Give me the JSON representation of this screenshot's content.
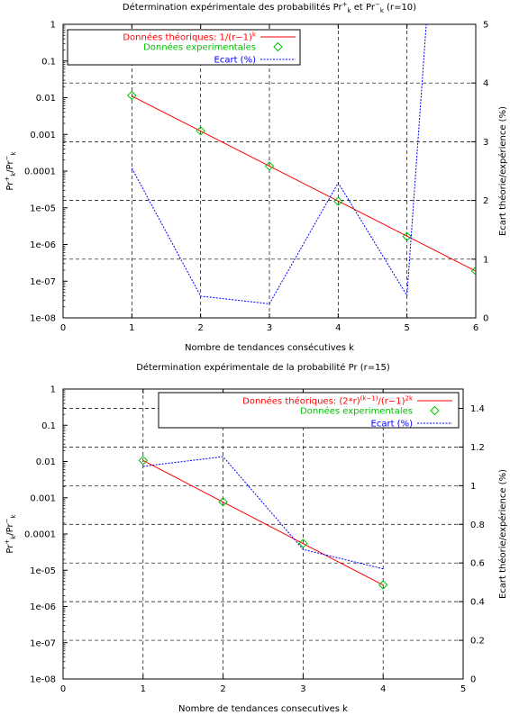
{
  "chart_data": [
    {
      "type": "line",
      "title": "Détermination expérimentale des probabilités Pr",
      "title_sup1": "+",
      "title_sub1": "k",
      "title_mid": " et Pr",
      "title_sup2": "−",
      "title_sub2": "k",
      "title_tail": " (r=10)",
      "xlabel": "Nombre de tendances consécutives k",
      "ylabel_pr": "Pr",
      "ylabel_sup1": "+",
      "ylabel_sub1": "k",
      "ylabel_slash": "/Pr",
      "ylabel_sup2": "−",
      "ylabel_sub2": "k",
      "y2label": "Ecart théorie/expérience (%)",
      "xlim": [
        0,
        6
      ],
      "ylim": [
        1e-08,
        1
      ],
      "y2lim": [
        0,
        5
      ],
      "x_ticks": [
        "0",
        "1",
        "2",
        "3",
        "4",
        "5",
        "6"
      ],
      "y_ticks": [
        "1",
        "0.1",
        "0.01",
        "0.001",
        "0.0001",
        "1e-05",
        "1e-06",
        "1e-07",
        "1e-08"
      ],
      "y2_ticks": [
        "0",
        "1",
        "2",
        "3",
        "4",
        "5"
      ],
      "legend": "top-left",
      "grid": true,
      "series": [
        {
          "name": "Données théoriques: 1/(r−1)",
          "name_sup": "k",
          "color": "#ff0000",
          "style": "line",
          "x": [
            1,
            2,
            3,
            4,
            5,
            6
          ],
          "y": [
            0.0111,
            0.00123,
            0.000137,
            1.52e-05,
            1.69e-06,
            1.88e-07
          ]
        },
        {
          "name": "Données experimentales",
          "color": "#00c000",
          "style": "diamond",
          "x": [
            1,
            2,
            3,
            4,
            5,
            6
          ],
          "y": [
            0.0115,
            0.00125,
            0.000137,
            1.5e-05,
            1.65e-06,
            1.9e-07
          ]
        },
        {
          "name": "Ecart (%)",
          "color": "#0000ff",
          "style": "dashed",
          "axis": "y2",
          "x": [
            1,
            2,
            3,
            4,
            5,
            5.28
          ],
          "y": [
            2.55,
            0.37,
            0.24,
            2.3,
            0.38,
            5.0
          ]
        }
      ]
    },
    {
      "type": "line",
      "title": "Détermination expérimentale de la probabilité Pr (r=15)",
      "xlabel": "Nombre de tendances consecutives k",
      "ylabel_pr": "Pr",
      "ylabel_sup1": "+",
      "ylabel_sub1": "k",
      "ylabel_slash": "/Pr",
      "ylabel_sup2": "−",
      "ylabel_sub2": "k",
      "y2label": "Ecart théorie/expérience (%)",
      "xlim": [
        0,
        5
      ],
      "ylim": [
        1e-08,
        1
      ],
      "y2lim": [
        0,
        1.5
      ],
      "x_ticks": [
        "0",
        "1",
        "2",
        "3",
        "4",
        "5"
      ],
      "y_ticks": [
        "1",
        "0.1",
        "0.01",
        "0.001",
        "0.0001",
        "1e-05",
        "1e-06",
        "1e-07",
        "1e-08"
      ],
      "y2_ticks": [
        "0",
        "0.2",
        "0.4",
        "0.6",
        "0.8",
        "1",
        "1.2",
        "1.4"
      ],
      "legend": "top-right",
      "grid": true,
      "series": [
        {
          "name": "Données théoriques: (2*r)",
          "name_sup": "(k−1)",
          "name_mid": "/(r−1)",
          "name_sup2": "2k",
          "color": "#ff0000",
          "style": "line",
          "x": [
            1,
            2,
            3,
            4
          ],
          "y": [
            0.0107,
            0.00076,
            5.44e-05,
            3.9e-06
          ]
        },
        {
          "name": "Données experimentales",
          "color": "#00c000",
          "style": "diamond",
          "x": [
            1,
            2,
            3,
            4
          ],
          "y": [
            0.0107,
            0.00077,
            5.5e-05,
            3.95e-06
          ]
        },
        {
          "name": "Ecart (%)",
          "color": "#0000ff",
          "style": "dashed",
          "axis": "y2",
          "x": [
            1,
            2,
            3,
            4
          ],
          "y": [
            1.1,
            1.15,
            0.67,
            0.57
          ]
        }
      ]
    }
  ]
}
